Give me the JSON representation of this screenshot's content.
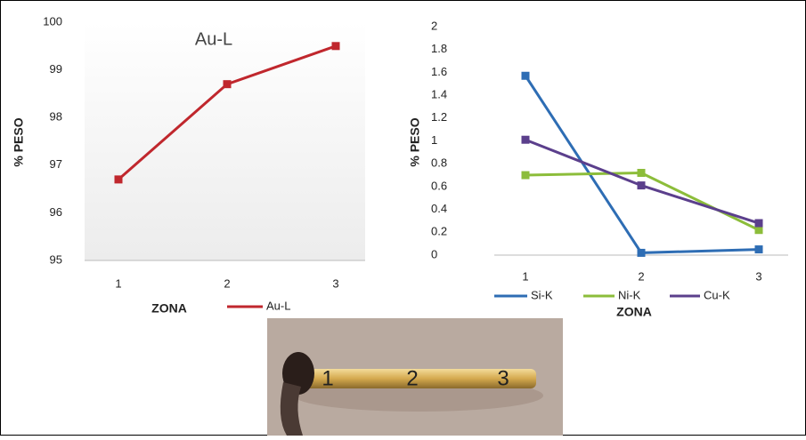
{
  "chart_data": [
    {
      "type": "line",
      "title": "Au-L",
      "x_label": "ZONA",
      "y_label": "% PESO",
      "categories": [
        "1",
        "2",
        "3"
      ],
      "series": [
        {
          "name": "Au-L",
          "color": "#c0272d",
          "values": [
            96.7,
            98.7,
            99.5
          ]
        }
      ],
      "ylim": [
        95,
        100
      ],
      "yticks": [
        95,
        96,
        97,
        98,
        99,
        100
      ],
      "grid": false
    },
    {
      "type": "line",
      "x_label": "ZONA",
      "y_label": "% PESO",
      "categories": [
        "1",
        "2",
        "3"
      ],
      "series": [
        {
          "name": "Si-K",
          "color": "#2e6db4",
          "values": [
            1.57,
            0.02,
            0.05
          ]
        },
        {
          "name": "Ni-K",
          "color": "#8cbd3a",
          "values": [
            0.7,
            0.72,
            0.22
          ]
        },
        {
          "name": "Cu-K",
          "color": "#5b3f8c",
          "values": [
            1.01,
            0.61,
            0.28
          ]
        }
      ],
      "ylim": [
        0,
        2
      ],
      "yticks": [
        0,
        0.2,
        0.4,
        0.6,
        0.8,
        1,
        1.2,
        1.4,
        1.6,
        1.8,
        2
      ],
      "grid": false
    }
  ],
  "photo": {
    "labels": [
      "1",
      "2",
      "3"
    ]
  }
}
